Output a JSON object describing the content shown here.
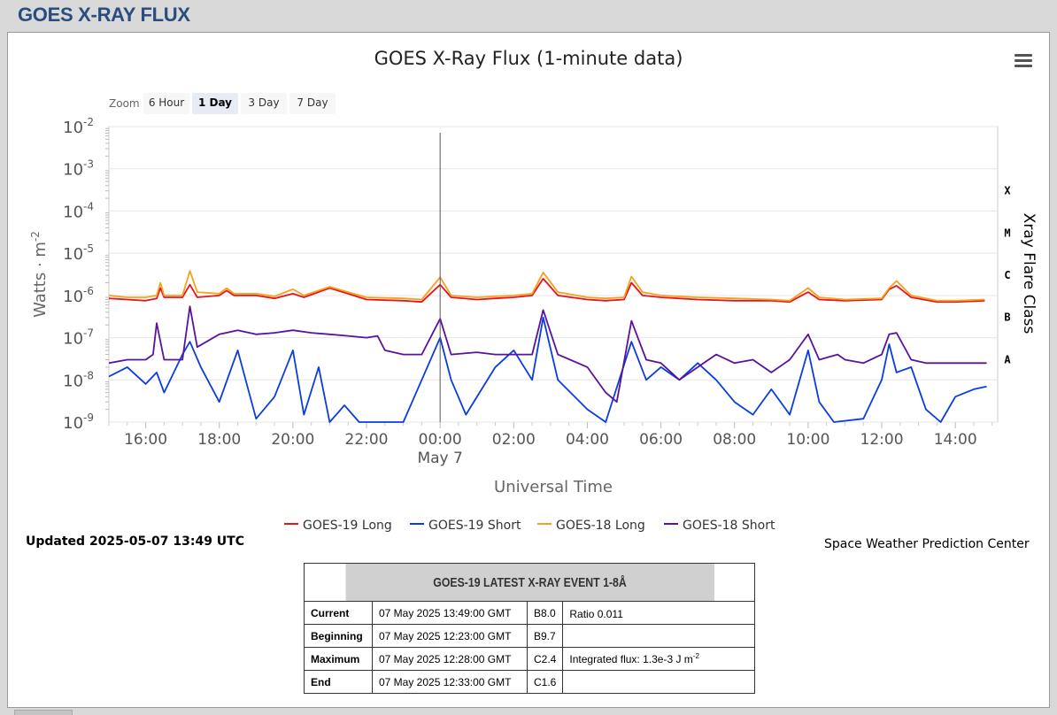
{
  "header": {
    "title": "GOES X-RAY FLUX"
  },
  "colors": {
    "goes19_long": "#e8141b",
    "goes19_short": "#0a3ddf",
    "goes18_long": "#f5a21d",
    "goes18_short": "#5a129e",
    "header_text": "#2a4d7f"
  },
  "zoom": {
    "label": "Zoom",
    "buttons": [
      "6 Hour",
      "1 Day",
      "3 Day",
      "7 Day"
    ],
    "selected": "1 Day"
  },
  "menu_icon": "hamburger-menu-icon",
  "chart_data": {
    "type": "line",
    "title": "GOES X-Ray Flux (1-minute data)",
    "xlabel": "Universal Time",
    "ylabel": "Watts · m-2",
    "y2label": "Xray Flare Class",
    "y_scale": "log",
    "ylim": [
      1e-09,
      0.01
    ],
    "y_ticks": [
      {
        "base": "10",
        "exp": "-9"
      },
      {
        "base": "10",
        "exp": "-8"
      },
      {
        "base": "10",
        "exp": "-7"
      },
      {
        "base": "10",
        "exp": "-6"
      },
      {
        "base": "10",
        "exp": "-5"
      },
      {
        "base": "10",
        "exp": "-4"
      },
      {
        "base": "10",
        "exp": "-3"
      },
      {
        "base": "10",
        "exp": "-2"
      }
    ],
    "x_ticks": [
      "16:00",
      "18:00",
      "20:00",
      "22:00",
      "00:00",
      "02:00",
      "04:00",
      "06:00",
      "08:00",
      "10:00",
      "12:00",
      "14:00"
    ],
    "x_date_label": "May 7",
    "xlim_hours": [
      15.0,
      39.15
    ],
    "flare_classes": [
      {
        "label": "A",
        "value": 1e-08
      },
      {
        "label": "B",
        "value": 1e-07
      },
      {
        "label": "C",
        "value": 1e-06
      },
      {
        "label": "M",
        "value": 1e-05
      },
      {
        "label": "X",
        "value": 0.0001
      }
    ],
    "crosshair_hours": 24.0,
    "grid": true,
    "series": [
      {
        "name": "GOES-19 Long",
        "color": "#e8141b",
        "points": [
          [
            15.0,
            8.5e-07
          ],
          [
            15.5,
            8e-07
          ],
          [
            16.0,
            7.5e-07
          ],
          [
            16.3,
            8.5e-07
          ],
          [
            16.4,
            1.5e-06
          ],
          [
            16.5,
            9e-07
          ],
          [
            17.0,
            9e-07
          ],
          [
            17.2,
            1.8e-06
          ],
          [
            17.4,
            9e-07
          ],
          [
            18.0,
            1e-06
          ],
          [
            18.2,
            1.3e-06
          ],
          [
            18.4,
            1e-06
          ],
          [
            19.0,
            1e-06
          ],
          [
            19.5,
            8.5e-07
          ],
          [
            20.0,
            1.1e-06
          ],
          [
            20.3,
            9e-07
          ],
          [
            21.0,
            1.5e-06
          ],
          [
            21.5,
            1.1e-06
          ],
          [
            22.0,
            8e-07
          ],
          [
            23.0,
            7.5e-07
          ],
          [
            23.5,
            7e-07
          ],
          [
            24.0,
            1.8e-06
          ],
          [
            24.3,
            9e-07
          ],
          [
            25.0,
            8e-07
          ],
          [
            25.5,
            8.5e-07
          ],
          [
            26.0,
            9e-07
          ],
          [
            26.5,
            1e-06
          ],
          [
            26.8,
            2.5e-06
          ],
          [
            27.2,
            1e-06
          ],
          [
            28.0,
            8e-07
          ],
          [
            28.5,
            7.5e-07
          ],
          [
            29.0,
            8e-07
          ],
          [
            29.2,
            2e-06
          ],
          [
            29.5,
            1e-06
          ],
          [
            30.0,
            9e-07
          ],
          [
            31.0,
            8e-07
          ],
          [
            32.0,
            7.5e-07
          ],
          [
            33.0,
            7.5e-07
          ],
          [
            33.5,
            7e-07
          ],
          [
            34.0,
            1.2e-06
          ],
          [
            34.3,
            8e-07
          ],
          [
            35.0,
            7.5e-07
          ],
          [
            36.0,
            8e-07
          ],
          [
            36.2,
            1.4e-06
          ],
          [
            36.4,
            1.7e-06
          ],
          [
            36.8,
            9e-07
          ],
          [
            37.5,
            7e-07
          ],
          [
            38.0,
            7e-07
          ],
          [
            38.8,
            7.5e-07
          ]
        ]
      },
      {
        "name": "GOES-19 Short",
        "color": "#0a3ddf",
        "points": [
          [
            15.0,
            1.2e-08
          ],
          [
            15.5,
            2e-08
          ],
          [
            16.0,
            8e-09
          ],
          [
            16.3,
            1.5e-08
          ],
          [
            16.5,
            5e-09
          ],
          [
            17.0,
            4e-08
          ],
          [
            17.2,
            8e-08
          ],
          [
            17.5,
            2e-08
          ],
          [
            18.0,
            3e-09
          ],
          [
            18.5,
            5e-08
          ],
          [
            19.0,
            1.2e-09
          ],
          [
            19.5,
            4e-09
          ],
          [
            20.0,
            5e-08
          ],
          [
            20.3,
            1.5e-09
          ],
          [
            20.7,
            2e-08
          ],
          [
            21.0,
            1e-09
          ],
          [
            21.4,
            2.5e-09
          ],
          [
            21.8,
            1e-09
          ],
          [
            22.5,
            1e-09
          ],
          [
            23.0,
            1e-09
          ],
          [
            23.5,
            1e-08
          ],
          [
            24.0,
            1e-07
          ],
          [
            24.3,
            1e-08
          ],
          [
            24.7,
            1.5e-09
          ],
          [
            25.5,
            2e-08
          ],
          [
            26.0,
            5e-08
          ],
          [
            26.5,
            1e-08
          ],
          [
            26.8,
            3e-07
          ],
          [
            27.2,
            1e-08
          ],
          [
            28.0,
            2e-09
          ],
          [
            28.5,
            1e-09
          ],
          [
            29.2,
            8e-08
          ],
          [
            29.6,
            1e-08
          ],
          [
            30.0,
            2e-08
          ],
          [
            30.5,
            1e-08
          ],
          [
            31.0,
            2.5e-08
          ],
          [
            31.5,
            1e-08
          ],
          [
            32.0,
            3e-09
          ],
          [
            32.5,
            1.5e-09
          ],
          [
            33.0,
            6e-09
          ],
          [
            33.5,
            1.5e-09
          ],
          [
            34.0,
            5e-08
          ],
          [
            34.3,
            3e-09
          ],
          [
            34.7,
            1e-09
          ],
          [
            35.5,
            1.2e-09
          ],
          [
            36.0,
            1e-08
          ],
          [
            36.2,
            7e-08
          ],
          [
            36.4,
            1.5e-08
          ],
          [
            36.8,
            2e-08
          ],
          [
            37.2,
            2e-09
          ],
          [
            37.6,
            1e-09
          ],
          [
            38.0,
            4e-09
          ],
          [
            38.5,
            6e-09
          ],
          [
            38.85,
            7e-09
          ]
        ]
      },
      {
        "name": "GOES-18 Long",
        "color": "#f5a21d",
        "points": [
          [
            15.0,
            1e-06
          ],
          [
            15.5,
            9e-07
          ],
          [
            16.0,
            9e-07
          ],
          [
            16.3,
            1e-06
          ],
          [
            16.4,
            2e-06
          ],
          [
            16.5,
            1e-06
          ],
          [
            17.0,
            1e-06
          ],
          [
            17.2,
            3.8e-06
          ],
          [
            17.4,
            1.2e-06
          ],
          [
            18.0,
            1.1e-06
          ],
          [
            18.2,
            1.5e-06
          ],
          [
            18.4,
            1.1e-06
          ],
          [
            19.0,
            1.1e-06
          ],
          [
            19.5,
            9.5e-07
          ],
          [
            20.0,
            1.4e-06
          ],
          [
            20.3,
            1e-06
          ],
          [
            21.0,
            1.6e-06
          ],
          [
            21.5,
            1.2e-06
          ],
          [
            22.0,
            9e-07
          ],
          [
            23.0,
            8.5e-07
          ],
          [
            23.5,
            8e-07
          ],
          [
            24.0,
            2.7e-06
          ],
          [
            24.3,
            1e-06
          ],
          [
            25.0,
            9e-07
          ],
          [
            25.5,
            9.5e-07
          ],
          [
            26.0,
            1e-06
          ],
          [
            26.5,
            1.1e-06
          ],
          [
            26.8,
            3.5e-06
          ],
          [
            27.2,
            1.2e-06
          ],
          [
            28.0,
            9e-07
          ],
          [
            28.5,
            8.5e-07
          ],
          [
            29.0,
            9e-07
          ],
          [
            29.2,
            2.8e-06
          ],
          [
            29.5,
            1.2e-06
          ],
          [
            30.0,
            1e-06
          ],
          [
            31.0,
            9e-07
          ],
          [
            32.0,
            8.5e-07
          ],
          [
            33.0,
            8e-07
          ],
          [
            33.5,
            7.5e-07
          ],
          [
            34.0,
            1.5e-06
          ],
          [
            34.3,
            9e-07
          ],
          [
            35.0,
            8e-07
          ],
          [
            36.0,
            8.5e-07
          ],
          [
            36.2,
            1.5e-06
          ],
          [
            36.4,
            2.2e-06
          ],
          [
            36.8,
            1e-06
          ],
          [
            37.5,
            7.5e-07
          ],
          [
            38.0,
            7.5e-07
          ],
          [
            38.8,
            8e-07
          ]
        ]
      },
      {
        "name": "GOES-18 Short",
        "color": "#5a129e",
        "points": [
          [
            15.0,
            2.5e-08
          ],
          [
            15.5,
            3e-08
          ],
          [
            16.0,
            3e-08
          ],
          [
            16.2,
            4e-08
          ],
          [
            16.3,
            2.2e-07
          ],
          [
            16.5,
            3e-08
          ],
          [
            17.0,
            3e-08
          ],
          [
            17.2,
            5.5e-07
          ],
          [
            17.4,
            6e-08
          ],
          [
            18.0,
            1.2e-07
          ],
          [
            18.5,
            1.5e-07
          ],
          [
            19.0,
            1.2e-07
          ],
          [
            19.5,
            1.3e-07
          ],
          [
            20.0,
            1.5e-07
          ],
          [
            20.5,
            1.3e-07
          ],
          [
            21.0,
            1.2e-07
          ],
          [
            21.5,
            1.1e-07
          ],
          [
            22.0,
            1e-07
          ],
          [
            22.3,
            1.1e-07
          ],
          [
            22.5,
            5e-08
          ],
          [
            23.0,
            4e-08
          ],
          [
            23.5,
            4e-08
          ],
          [
            24.0,
            2.8e-07
          ],
          [
            24.3,
            4e-08
          ],
          [
            25.0,
            4.5e-08
          ],
          [
            25.5,
            4e-08
          ],
          [
            26.0,
            4e-08
          ],
          [
            26.5,
            4e-08
          ],
          [
            26.8,
            4.5e-07
          ],
          [
            27.2,
            4e-08
          ],
          [
            28.0,
            2e-08
          ],
          [
            28.5,
            5e-09
          ],
          [
            28.8,
            3e-09
          ],
          [
            29.2,
            2.5e-07
          ],
          [
            29.6,
            3e-08
          ],
          [
            30.0,
            2.5e-08
          ],
          [
            30.5,
            1e-08
          ],
          [
            31.0,
            2e-08
          ],
          [
            31.5,
            4e-08
          ],
          [
            32.0,
            2.5e-08
          ],
          [
            32.5,
            3e-08
          ],
          [
            33.0,
            1.5e-08
          ],
          [
            33.5,
            3e-08
          ],
          [
            34.0,
            1.2e-07
          ],
          [
            34.3,
            3e-08
          ],
          [
            34.8,
            4e-08
          ],
          [
            35.0,
            3e-08
          ],
          [
            35.5,
            2.5e-08
          ],
          [
            36.0,
            4e-08
          ],
          [
            36.2,
            1.2e-07
          ],
          [
            36.4,
            1.3e-07
          ],
          [
            36.8,
            3e-08
          ],
          [
            37.2,
            2.5e-08
          ],
          [
            38.0,
            2.5e-08
          ],
          [
            38.85,
            2.5e-08
          ]
        ]
      }
    ],
    "legend_position": "bottom"
  },
  "updated": "Updated 2025-05-07 13:49 UTC",
  "credit": "Space Weather Prediction Center",
  "event_table": {
    "title": "GOES-19 LATEST X-RAY EVENT 1-8Å",
    "rows": [
      {
        "label": "Current",
        "time": "07 May 2025 13:49:00 GMT",
        "class": "B8.0",
        "note": "Ratio 0.011",
        "sup": ""
      },
      {
        "label": "Beginning",
        "time": "07 May 2025 12:23:00 GMT",
        "class": "B9.7",
        "note": "",
        "sup": ""
      },
      {
        "label": "Maximum",
        "time": "07 May 2025 12:28:00 GMT",
        "class": "C2.4",
        "note": "Integrated flux: 1.3e-3 J m",
        "sup": "-2"
      },
      {
        "label": "End",
        "time": "07 May 2025 12:33:00 GMT",
        "class": "C1.6",
        "note": "",
        "sup": ""
      }
    ]
  }
}
